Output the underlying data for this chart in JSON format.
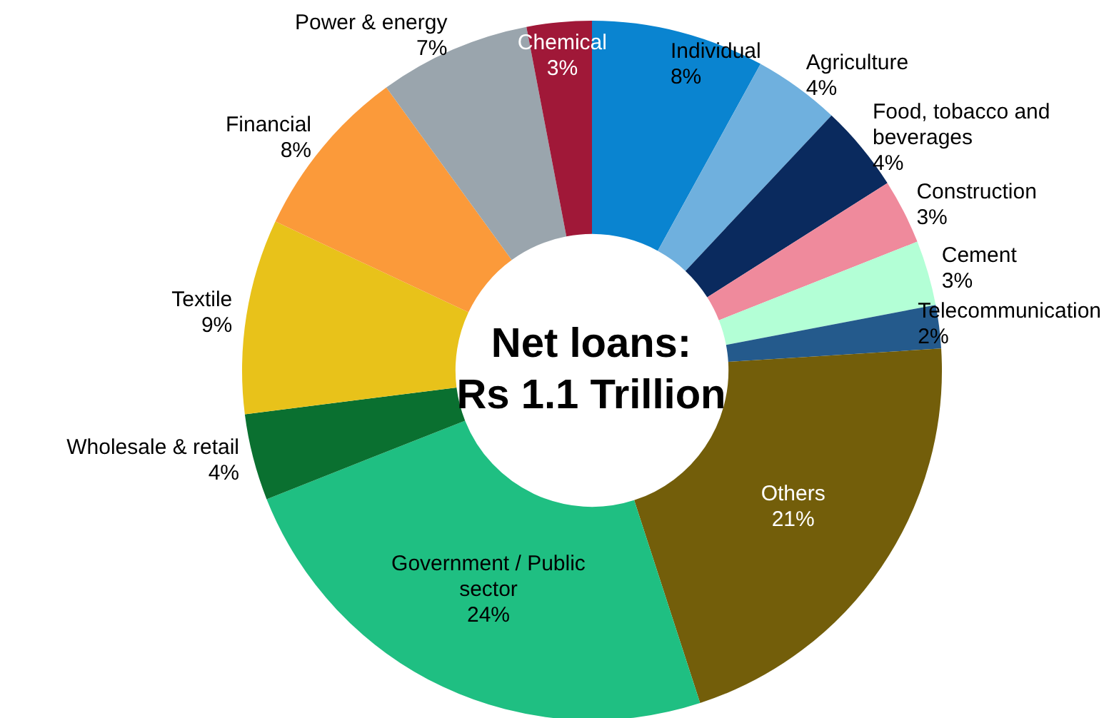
{
  "chart_data": {
    "type": "donut",
    "title": "Net loans:",
    "subtitle": "Rs 1.1 Trillion",
    "categories": [
      "Individual",
      "Agriculture",
      "Food, tobacco and beverages",
      "Construction",
      "Cement",
      "Telecommunication",
      "Others",
      "Government / Public sector",
      "Wholesale & retail",
      "Textile",
      "Financial",
      "Power & energy",
      "Chemical"
    ],
    "values": [
      8,
      4,
      4,
      3,
      3,
      2,
      21,
      24,
      4,
      9,
      8,
      7,
      3
    ],
    "value_labels": [
      "8%",
      "4%",
      "4%",
      "3%",
      "3%",
      "2%",
      "21%",
      "24%",
      "4%",
      "9%",
      "8%",
      "7%",
      "3%"
    ],
    "colors": [
      "#0a84d0",
      "#6fb0de",
      "#0a2a5e",
      "#ef8a9c",
      "#b3ffd6",
      "#245a8c",
      "#735e0a",
      "#1fbf82",
      "#0a7030",
      "#e8c21a",
      "#fb9a3a",
      "#9aa5ad",
      "#a01838"
    ],
    "legend": false
  }
}
